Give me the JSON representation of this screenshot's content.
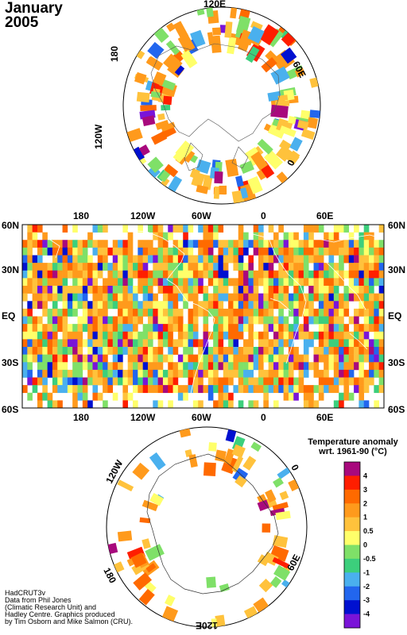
{
  "title": {
    "line1": "January",
    "line2": "2005"
  },
  "north_polar_labels": {
    "top": "120E",
    "right": "60E",
    "lower_right": "0",
    "left": "180",
    "lower_left": "120W"
  },
  "map_labels": {
    "lon_top": [
      "180",
      "120W",
      "60W",
      "0",
      "60E"
    ],
    "lon_bottom": [
      "180",
      "120W",
      "60W",
      "0",
      "60E"
    ],
    "lat_left": [
      "60N",
      "30N",
      "EQ",
      "30S",
      "60S"
    ],
    "lat_right": [
      "60N",
      "30N",
      "EQ",
      "30S",
      "60S"
    ]
  },
  "south_polar_labels": {
    "upper_left": "120W",
    "upper_right": "0",
    "lower_left": "180",
    "lower_right": "60E",
    "bottom": "120E"
  },
  "legend": {
    "title_line1": "Temperature anomaly",
    "title_line2": "wrt. 1961-90  (°C)",
    "levels": [
      "4",
      "3",
      "2",
      "1",
      "0.5",
      "0",
      "-0.5",
      "-1",
      "-2",
      "-3",
      "-4"
    ],
    "colors": [
      "#a8097d",
      "#ff1e00",
      "#ff6a00",
      "#ff9a1c",
      "#ffc23c",
      "#ffff6a",
      "#7fe068",
      "#3ccf7c",
      "#4ab0ee",
      "#2266ee",
      "#0010d0",
      "#7a14d8"
    ]
  },
  "credit": [
    "HadCRUT3v",
    "Data from Phil Jones",
    "(Climatic Research Unit) and",
    "Hadley Centre.  Graphics produced",
    "by Tim Osborn and Mike Salmon (CRU)."
  ]
}
